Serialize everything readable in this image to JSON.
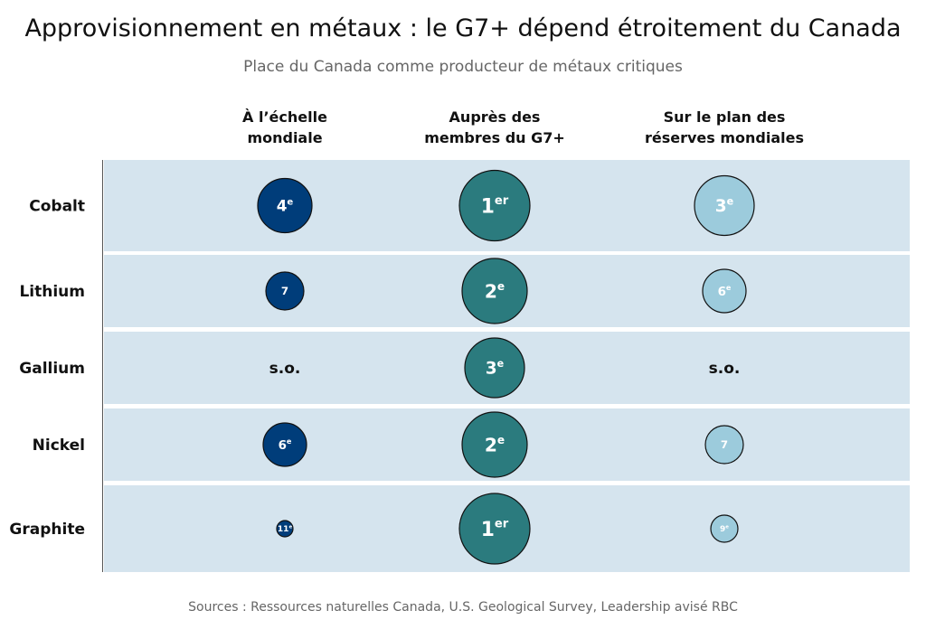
{
  "chart_data": {
    "type": "table",
    "title": "Approvisionnement en métaux : le G7+ dépend étroitement du Canada",
    "subtitle": "Place du Canada comme producteur de métaux critiques",
    "columns": [
      {
        "lines": [
          "À l’échelle",
          "mondiale"
        ],
        "color": "#003d7a",
        "text_color": "#ffffff"
      },
      {
        "lines": [
          "Auprès des",
          "membres du G7+"
        ],
        "color": "#2b7b7e",
        "text_color": "#ffffff"
      },
      {
        "lines": [
          "Sur le plan des",
          "réserves mondiales"
        ],
        "color": "#9ccbdc",
        "text_color": "#ffffff"
      }
    ],
    "rows": [
      {
        "metal": "Cobalt",
        "values": [
          {
            "rank": 4,
            "label": "4",
            "sup": "e"
          },
          {
            "rank": 1,
            "label": "1",
            "sup": "er"
          },
          {
            "rank": 3,
            "label": "3",
            "sup": "e"
          }
        ]
      },
      {
        "metal": "Lithium",
        "values": [
          {
            "rank": 7,
            "label": "7",
            "sup": ""
          },
          {
            "rank": 2,
            "label": "2",
            "sup": "e"
          },
          {
            "rank": 6,
            "label": "6",
            "sup": "e"
          }
        ]
      },
      {
        "metal": "Gallium",
        "values": [
          {
            "rank": null,
            "label": "s.o.",
            "sup": ""
          },
          {
            "rank": 3,
            "label": "3",
            "sup": "e"
          },
          {
            "rank": null,
            "label": "s.o.",
            "sup": ""
          }
        ]
      },
      {
        "metal": "Nickel",
        "values": [
          {
            "rank": 6,
            "label": "6",
            "sup": "e"
          },
          {
            "rank": 2,
            "label": "2",
            "sup": "e"
          },
          {
            "rank": 7,
            "label": "7",
            "sup": ""
          }
        ]
      },
      {
        "metal": "Graphite",
        "values": [
          {
            "rank": 11,
            "label": "11",
            "sup": "e"
          },
          {
            "rank": 1,
            "label": "1",
            "sup": "er"
          },
          {
            "rank": 9,
            "label": "9",
            "sup": "e"
          }
        ]
      }
    ],
    "source": "Sources : Ressources naturelles Canada, U.S. Geological Survey, Leadership avisé RBC"
  }
}
